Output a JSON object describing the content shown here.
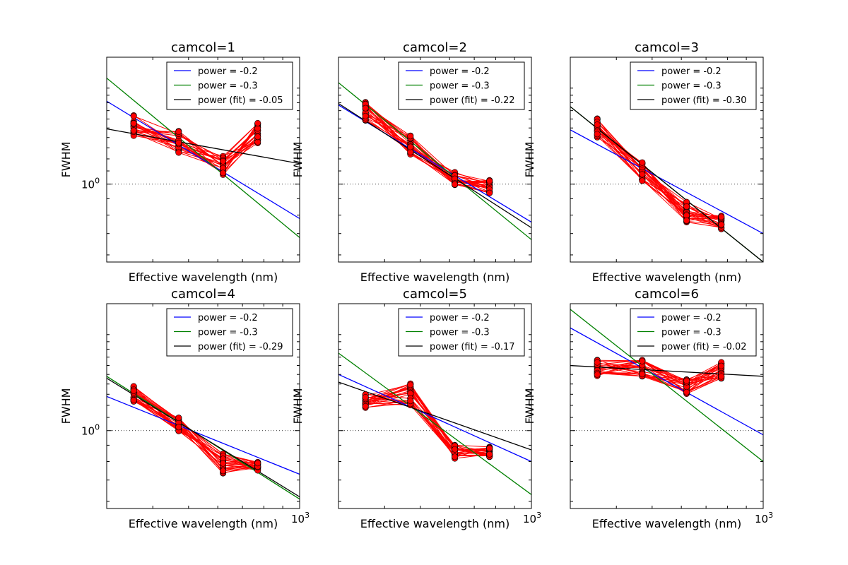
{
  "figure": {
    "xlabel": "Effective wavelength (nm)",
    "ylabel": "FWHM",
    "ytick_label": "10",
    "ytick_exp": "0",
    "xtick_label": "10",
    "xtick_exp": "3"
  },
  "colors": {
    "data": "#ff0000",
    "marker": "#c40000",
    "power_02": "#0000ff",
    "power_03": "#008000",
    "fit": "#000000"
  },
  "chart_data": [
    {
      "type": "line",
      "title": "camcol=1",
      "x_scale": "log",
      "y_scale": "log",
      "xlim": [
        300,
        1000
      ],
      "ylim": [
        0.57,
        2.5
      ],
      "legend_placement": "top-right",
      "legend": [
        "power = -0.2",
        "power = -0.3",
        "power (fit) = -0.05"
      ],
      "bands_x": [
        355,
        470,
        620,
        770
      ],
      "bands_y": [
        1.53,
        1.36,
        1.15,
        1.44
      ],
      "bands_spread": [
        0.08,
        0.08,
        0.07,
        0.08
      ],
      "lines": [
        {
          "name": "power = -0.2",
          "x": [
            300,
            1000
          ],
          "y": [
            1.82,
            0.78
          ]
        },
        {
          "name": "power = -0.3",
          "x": [
            300,
            1000
          ],
          "y": [
            2.15,
            0.68
          ]
        },
        {
          "name": "power (fit) = -0.05",
          "x": [
            300,
            1000
          ],
          "y": [
            1.49,
            1.16
          ]
        }
      ]
    },
    {
      "type": "line",
      "title": "camcol=2",
      "x_scale": "log",
      "y_scale": "log",
      "xlim": [
        300,
        1000
      ],
      "ylim": [
        0.57,
        2.5
      ],
      "legend_placement": "top-right",
      "legend": [
        "power = -0.2",
        "power = -0.3",
        "power (fit) = -0.22"
      ],
      "bands_x": [
        355,
        470,
        620,
        770
      ],
      "bands_y": [
        1.7,
        1.33,
        1.04,
        0.98
      ],
      "bands_spread": [
        0.07,
        0.07,
        0.05,
        0.05
      ],
      "lines": [
        {
          "name": "power = -0.2",
          "x": [
            300,
            1000
          ],
          "y": [
            1.77,
            0.76
          ]
        },
        {
          "name": "power = -0.3",
          "x": [
            300,
            1000
          ],
          "y": [
            2.08,
            0.67
          ]
        },
        {
          "name": "power (fit) = -0.22",
          "x": [
            300,
            1000
          ],
          "y": [
            1.79,
            0.73
          ]
        }
      ]
    },
    {
      "type": "line",
      "title": "camcol=3",
      "x_scale": "log",
      "y_scale": "log",
      "xlim": [
        300,
        1000
      ],
      "ylim": [
        0.57,
        2.5
      ],
      "legend_placement": "top-right",
      "legend": [
        "power = -0.2",
        "power = -0.3",
        "power (fit) = -0.30"
      ],
      "bands_x": [
        355,
        470,
        620,
        770
      ],
      "bands_y": [
        1.5,
        1.1,
        0.82,
        0.76
      ],
      "bands_spread": [
        0.07,
        0.07,
        0.08,
        0.05
      ],
      "lines": [
        {
          "name": "power = -0.2",
          "x": [
            300,
            1000
          ],
          "y": [
            1.48,
            0.7
          ]
        },
        {
          "name": "power = -0.3",
          "x": [
            300,
            1000
          ],
          "y": [
            1.75,
            0.57
          ]
        },
        {
          "name": "power (fit) = -0.30",
          "x": [
            300,
            1000
          ],
          "y": [
            1.75,
            0.57
          ]
        }
      ]
    },
    {
      "type": "line",
      "title": "camcol=4",
      "x_scale": "log",
      "y_scale": "log",
      "xlim": [
        300,
        1000
      ],
      "ylim": [
        0.57,
        2.5
      ],
      "legend_placement": "top-right",
      "legend": [
        "power = -0.2",
        "power = -0.3",
        "power (fit) = -0.29"
      ],
      "bands_x": [
        355,
        470,
        620,
        770
      ],
      "bands_y": [
        1.3,
        1.05,
        0.79,
        0.77
      ],
      "bands_spread": [
        0.06,
        0.05,
        0.07,
        0.04
      ],
      "lines": [
        {
          "name": "power = -0.2",
          "x": [
            300,
            1000
          ],
          "y": [
            1.28,
            0.73
          ]
        },
        {
          "name": "power = -0.3",
          "x": [
            300,
            1000
          ],
          "y": [
            1.48,
            0.61
          ]
        },
        {
          "name": "power (fit) = -0.29",
          "x": [
            300,
            1000
          ],
          "y": [
            1.46,
            0.62
          ]
        }
      ]
    },
    {
      "type": "line",
      "title": "camcol=5",
      "x_scale": "log",
      "y_scale": "log",
      "xlim": [
        300,
        1000
      ],
      "ylim": [
        0.57,
        2.5
      ],
      "legend_placement": "top-right",
      "legend": [
        "power = -0.2",
        "power = -0.3",
        "power (fit) = -0.17"
      ],
      "bands_x": [
        355,
        470,
        620,
        770
      ],
      "bands_y": [
        1.24,
        1.3,
        0.86,
        0.86
      ],
      "bands_spread": [
        0.05,
        0.08,
        0.05,
        0.04
      ],
      "lines": [
        {
          "name": "power = -0.2",
          "x": [
            300,
            1000
          ],
          "y": [
            1.5,
            0.8
          ]
        },
        {
          "name": "power = -0.3",
          "x": [
            300,
            1000
          ],
          "y": [
            1.75,
            0.63
          ]
        },
        {
          "name": "power (fit) = -0.17",
          "x": [
            300,
            1000
          ],
          "y": [
            1.42,
            0.87
          ]
        }
      ]
    },
    {
      "type": "line",
      "title": "camcol=6",
      "x_scale": "log",
      "y_scale": "log",
      "xlim": [
        300,
        1000
      ],
      "ylim": [
        0.57,
        2.5
      ],
      "legend_placement": "top-right",
      "legend": [
        "power = -0.2",
        "power = -0.3",
        "power (fit) = -0.02"
      ],
      "bands_x": [
        355,
        470,
        620,
        770
      ],
      "bands_y": [
        1.58,
        1.57,
        1.38,
        1.55
      ],
      "bands_spread": [
        0.06,
        0.06,
        0.06,
        0.06
      ],
      "lines": [
        {
          "name": "power = -0.2",
          "x": [
            300,
            1000
          ],
          "y": [
            2.1,
            0.97
          ]
        },
        {
          "name": "power = -0.3",
          "x": [
            300,
            1000
          ],
          "y": [
            2.4,
            0.8
          ]
        },
        {
          "name": "power (fit) = -0.02",
          "x": [
            300,
            1000
          ],
          "y": [
            1.6,
            1.48
          ]
        }
      ]
    }
  ]
}
